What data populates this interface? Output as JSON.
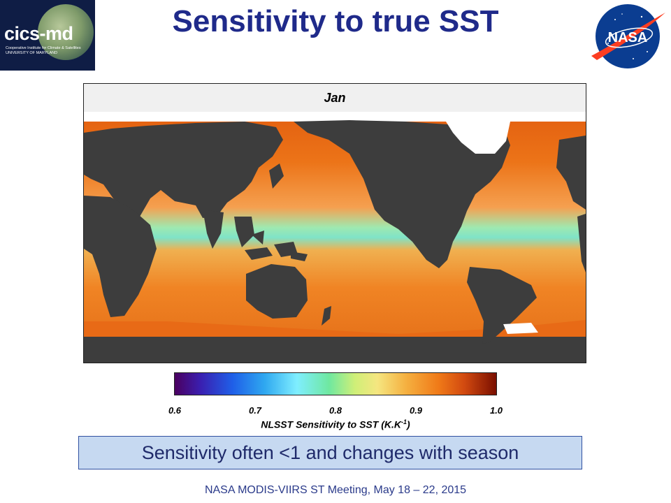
{
  "slide": {
    "title": "Sensitivity to true SST",
    "footer": "NASA MODIS-VIIRS ST Meeting, May 18 – 22, 2015",
    "callout": "Sensitivity often <1 and changes with season"
  },
  "logos": {
    "left_name": "cics-md",
    "left_sub1": "Cooperative Institute for Climate & Satellites",
    "left_sub2": "UNIVERSITY OF MARYLAND",
    "right_name": "NASA"
  },
  "map": {
    "month": "Jan",
    "colorbar": {
      "ticks": [
        "0.6",
        "0.7",
        "0.8",
        "0.9",
        "1.0"
      ],
      "label_main": "NLSST Sensitivity to SST (K.K",
      "label_sup": "-1",
      "label_end": ")"
    },
    "colors": {
      "land": "#3d3d3d",
      "ocean_high": "#e8680f",
      "ocean_mid": "#f28a2a",
      "equatorial": "#7fe3c0",
      "missing": "#ffffff"
    }
  }
}
